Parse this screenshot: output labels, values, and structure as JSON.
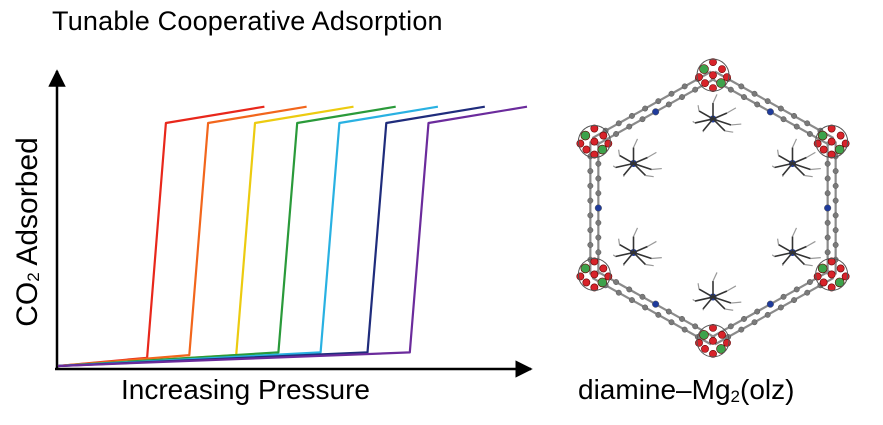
{
  "figure": {
    "title": "Tunable Cooperative Adsorption",
    "caption_prefix": "diamine–Mg",
    "caption_sub": "2",
    "caption_suffix": "(olz)",
    "structure_image": "hexagonal-MOF-pore-with-diamine"
  },
  "chart_data": {
    "type": "line",
    "title": "Tunable Cooperative Adsorption",
    "xlabel": "Increasing Pressure",
    "ylabel_prefix": "CO",
    "ylabel_sub": "2",
    "ylabel_suffix": " Adsorbed",
    "xlim": [
      0,
      100
    ],
    "ylim": [
      0,
      100
    ],
    "grid": false,
    "series": [
      {
        "name": "red",
        "color": "#e8271b",
        "x": [
          0,
          19,
          23,
          44
        ],
        "y": [
          0,
          3,
          89,
          95
        ]
      },
      {
        "name": "orange",
        "color": "#f2661c",
        "x": [
          0,
          28,
          32,
          53
        ],
        "y": [
          0,
          4,
          89,
          95
        ]
      },
      {
        "name": "yellow",
        "color": "#eccb10",
        "x": [
          0,
          38,
          42,
          63
        ],
        "y": [
          0,
          4,
          89,
          95
        ]
      },
      {
        "name": "green",
        "color": "#2a9a3a",
        "x": [
          0,
          47,
          51,
          72
        ],
        "y": [
          0,
          5,
          89,
          95
        ]
      },
      {
        "name": "cyan",
        "color": "#29b1e2",
        "x": [
          0,
          56,
          60,
          81
        ],
        "y": [
          0,
          5,
          89,
          95
        ]
      },
      {
        "name": "navy",
        "color": "#1f2c7c",
        "x": [
          0,
          66,
          70,
          91
        ],
        "y": [
          0,
          5,
          89,
          95
        ]
      },
      {
        "name": "purple",
        "color": "#6b2b9c",
        "x": [
          0,
          75,
          79,
          100
        ],
        "y": [
          0,
          5,
          89,
          95
        ]
      }
    ]
  },
  "colors": {
    "axis": "#000000",
    "framework": "#8a8a8a",
    "oxygen": "#d8232a",
    "magnesium": "#3da24b",
    "nitrogen": "#1f3b9b",
    "carbon": "#7a7a7a"
  }
}
